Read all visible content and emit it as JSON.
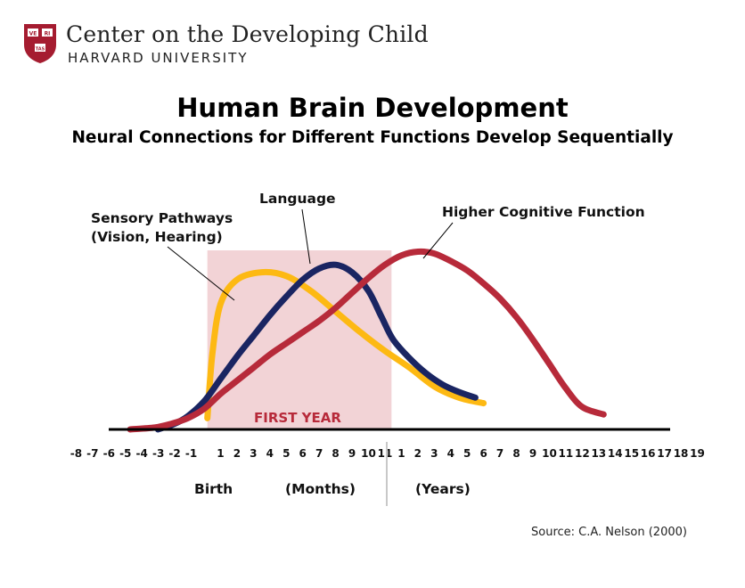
{
  "header": {
    "org_name": "Center on the Developing Child",
    "org_sub": "HARVARD UNIVERSITY",
    "logo_text": [
      "VE",
      "RI",
      "TAS"
    ]
  },
  "title": "Human Brain Development",
  "subtitle": "Neural Connections for Different Functions Develop Sequentially",
  "source": "Source: C.A. Nelson (2000)",
  "colors": {
    "sensory": "#FDB913",
    "language": "#1A2562",
    "cognitive": "#B72A3A",
    "first_year_band": "#F2D3D6",
    "first_year_text": "#B72A3A",
    "logo": "#A51C30"
  },
  "chart_data": {
    "type": "line",
    "x_unit_note": "Position index: -8..-1 = months before birth, 1..11 = months, 12..30 = years 1..19",
    "tick_labels_prenatal": [
      "-8",
      "-7",
      "-6",
      "-5",
      "-4",
      "-3",
      "-2",
      "-1"
    ],
    "tick_labels_months": [
      "1",
      "2",
      "3",
      "4",
      "5",
      "6",
      "7",
      "8",
      "9",
      "10",
      "11"
    ],
    "tick_labels_years": [
      "1",
      "2",
      "3",
      "4",
      "5",
      "6",
      "7",
      "8",
      "9",
      "10",
      "11",
      "12",
      "13",
      "14",
      "15",
      "16",
      "17",
      "18",
      "19"
    ],
    "band": {
      "label": "FIRST YEAR",
      "from": 0.2,
      "to": 11.4
    },
    "axis_labels": {
      "birth": "Birth",
      "months": "(Months)",
      "years": "(Years)"
    },
    "ylim": [
      0,
      1
    ],
    "series": [
      {
        "name": "Sensory Pathways (Vision, Hearing)",
        "label_lines": [
          "Sensory Pathways",
          "(Vision, Hearing)"
        ],
        "color_key": "sensory",
        "points": [
          [
            0.2,
            0.06
          ],
          [
            0.5,
            0.4
          ],
          [
            1,
            0.67
          ],
          [
            2,
            0.8
          ],
          [
            3.5,
            0.84
          ],
          [
            5,
            0.82
          ],
          [
            6.5,
            0.74
          ],
          [
            8,
            0.63
          ],
          [
            9.5,
            0.52
          ],
          [
            11,
            0.42
          ],
          [
            12.5,
            0.33
          ],
          [
            14,
            0.23
          ],
          [
            15.5,
            0.17
          ],
          [
            17,
            0.14
          ]
        ]
      },
      {
        "name": "Language",
        "label_lines": [
          "Language"
        ],
        "color_key": "language",
        "points": [
          [
            -2.8,
            0.0
          ],
          [
            -1.8,
            0.03
          ],
          [
            -1,
            0.07
          ],
          [
            0,
            0.15
          ],
          [
            1,
            0.27
          ],
          [
            2,
            0.39
          ],
          [
            3,
            0.5
          ],
          [
            4,
            0.61
          ],
          [
            5,
            0.71
          ],
          [
            6,
            0.8
          ],
          [
            7,
            0.86
          ],
          [
            8,
            0.88
          ],
          [
            9,
            0.84
          ],
          [
            10,
            0.74
          ],
          [
            10.8,
            0.6
          ],
          [
            11.5,
            0.48
          ],
          [
            12.5,
            0.38
          ],
          [
            13.5,
            0.3
          ],
          [
            14.5,
            0.24
          ],
          [
            15.5,
            0.2
          ],
          [
            16.5,
            0.17
          ]
        ]
      },
      {
        "name": "Higher Cognitive Function",
        "label_lines": [
          "Higher Cognitive Function"
        ],
        "color_key": "cognitive",
        "points": [
          [
            -4.5,
            0.0
          ],
          [
            -3,
            0.01
          ],
          [
            -2,
            0.03
          ],
          [
            -1,
            0.06
          ],
          [
            0,
            0.11
          ],
          [
            1,
            0.19
          ],
          [
            2,
            0.26
          ],
          [
            3,
            0.33
          ],
          [
            4,
            0.4
          ],
          [
            5,
            0.46
          ],
          [
            6,
            0.52
          ],
          [
            7,
            0.58
          ],
          [
            8,
            0.65
          ],
          [
            9,
            0.73
          ],
          [
            10,
            0.81
          ],
          [
            11,
            0.88
          ],
          [
            12,
            0.93
          ],
          [
            13,
            0.95
          ],
          [
            14,
            0.94
          ],
          [
            15,
            0.9
          ],
          [
            16,
            0.85
          ],
          [
            17,
            0.78
          ],
          [
            18,
            0.7
          ],
          [
            19,
            0.6
          ],
          [
            20,
            0.48
          ],
          [
            21,
            0.35
          ],
          [
            22,
            0.22
          ],
          [
            23,
            0.12
          ],
          [
            24.3,
            0.08
          ]
        ]
      }
    ]
  }
}
